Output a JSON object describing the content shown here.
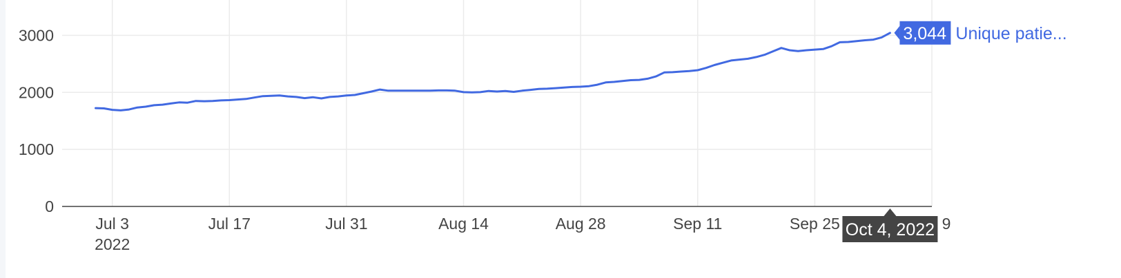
{
  "chart_data": {
    "type": "line",
    "title": "",
    "xlabel": "",
    "ylabel": "",
    "ylim": [
      0,
      3500
    ],
    "xlim": [
      "2022-06-27",
      "2022-10-09"
    ],
    "grid": true,
    "y_ticks": [
      {
        "value": 0,
        "label": "0"
      },
      {
        "value": 1000,
        "label": "1000"
      },
      {
        "value": 2000,
        "label": "2000"
      },
      {
        "value": 3000,
        "label": "3000"
      }
    ],
    "x_ticks": [
      {
        "date": "2022-07-03",
        "label": "Jul 3",
        "sublabel": "2022"
      },
      {
        "date": "2022-07-17",
        "label": "Jul 17"
      },
      {
        "date": "2022-07-31",
        "label": "Jul 31"
      },
      {
        "date": "2022-08-14",
        "label": "Aug 14"
      },
      {
        "date": "2022-08-28",
        "label": "Aug 28"
      },
      {
        "date": "2022-09-11",
        "label": "Sep 11"
      },
      {
        "date": "2022-09-25",
        "label": "Sep 25"
      },
      {
        "date": "2022-10-09",
        "label": "Oct 9"
      }
    ],
    "series": [
      {
        "name": "Unique patie...",
        "color": "#4169e1",
        "x": [
          "2022-07-01",
          "2022-07-02",
          "2022-07-03",
          "2022-07-04",
          "2022-07-05",
          "2022-07-06",
          "2022-07-07",
          "2022-07-08",
          "2022-07-09",
          "2022-07-10",
          "2022-07-11",
          "2022-07-12",
          "2022-07-13",
          "2022-07-14",
          "2022-07-15",
          "2022-07-16",
          "2022-07-17",
          "2022-07-18",
          "2022-07-19",
          "2022-07-20",
          "2022-07-21",
          "2022-07-22",
          "2022-07-23",
          "2022-07-24",
          "2022-07-25",
          "2022-07-26",
          "2022-07-27",
          "2022-07-28",
          "2022-07-29",
          "2022-07-30",
          "2022-07-31",
          "2022-08-01",
          "2022-08-02",
          "2022-08-03",
          "2022-08-04",
          "2022-08-05",
          "2022-08-06",
          "2022-08-07",
          "2022-08-08",
          "2022-08-09",
          "2022-08-10",
          "2022-08-11",
          "2022-08-12",
          "2022-08-13",
          "2022-08-14",
          "2022-08-15",
          "2022-08-16",
          "2022-08-17",
          "2022-08-18",
          "2022-08-19",
          "2022-08-20",
          "2022-08-21",
          "2022-08-22",
          "2022-08-23",
          "2022-08-24",
          "2022-08-25",
          "2022-08-26",
          "2022-08-27",
          "2022-08-28",
          "2022-08-29",
          "2022-08-30",
          "2022-08-31",
          "2022-09-01",
          "2022-09-02",
          "2022-09-03",
          "2022-09-04",
          "2022-09-05",
          "2022-09-06",
          "2022-09-07",
          "2022-09-08",
          "2022-09-09",
          "2022-09-10",
          "2022-09-11",
          "2022-09-12",
          "2022-09-13",
          "2022-09-14",
          "2022-09-15",
          "2022-09-16",
          "2022-09-17",
          "2022-09-18",
          "2022-09-19",
          "2022-09-20",
          "2022-09-21",
          "2022-09-22",
          "2022-09-23",
          "2022-09-24",
          "2022-09-25",
          "2022-09-26",
          "2022-09-27",
          "2022-09-28",
          "2022-09-29",
          "2022-09-30",
          "2022-10-01",
          "2022-10-02",
          "2022-10-03",
          "2022-10-04"
        ],
        "values": [
          1725,
          1720,
          1695,
          1685,
          1700,
          1735,
          1750,
          1775,
          1785,
          1805,
          1825,
          1820,
          1850,
          1845,
          1850,
          1860,
          1865,
          1875,
          1885,
          1910,
          1935,
          1940,
          1945,
          1930,
          1920,
          1900,
          1915,
          1895,
          1920,
          1930,
          1945,
          1955,
          1985,
          2015,
          2050,
          2030,
          2030,
          2030,
          2030,
          2030,
          2030,
          2035,
          2035,
          2030,
          2005,
          2000,
          2005,
          2025,
          2015,
          2025,
          2010,
          2030,
          2045,
          2060,
          2065,
          2075,
          2085,
          2095,
          2100,
          2110,
          2135,
          2175,
          2185,
          2200,
          2215,
          2220,
          2240,
          2280,
          2350,
          2355,
          2365,
          2375,
          2390,
          2430,
          2480,
          2520,
          2560,
          2575,
          2590,
          2620,
          2660,
          2720,
          2780,
          2740,
          2725,
          2740,
          2750,
          2760,
          2810,
          2880,
          2885,
          2900,
          2915,
          2925,
          2965,
          3044
        ]
      }
    ],
    "last_point_label": "3,044",
    "hover": {
      "date": "2022-10-04",
      "label": "Oct 4, 2022"
    }
  }
}
